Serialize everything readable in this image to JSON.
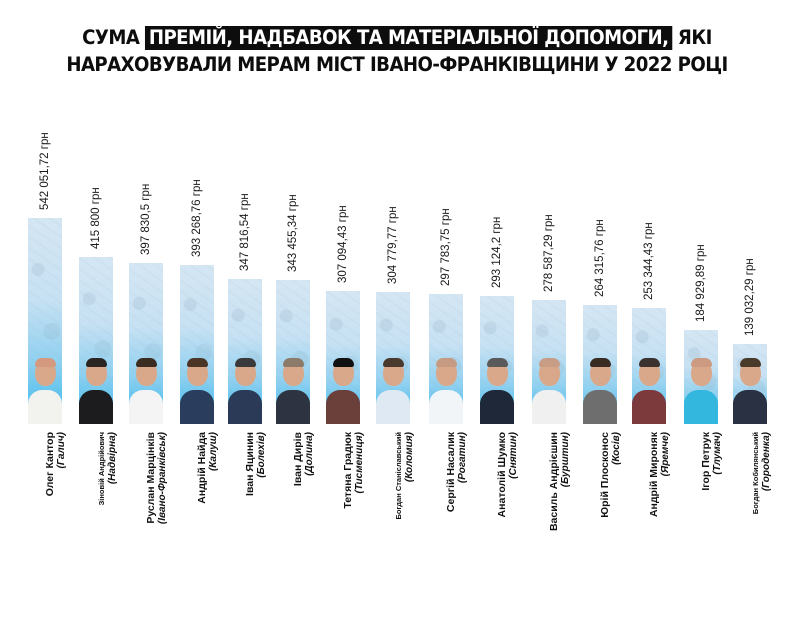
{
  "title": {
    "line1_prefix": "СУМА",
    "line1_highlight": "ПРЕМІЙ, НАДБАВОК ТА МАТЕРІАЛЬНОЇ ДОПОМОГИ,",
    "line1_suffix": "ЯКІ",
    "line2": "НАРАХОВУВАЛИ МЕРАМ МІСТ ІВАНО-ФРАНКІВЩИНИ У 2022 РОЦІ",
    "highlight_bg": "#0d0d0d",
    "highlight_fg": "#ffffff"
  },
  "colors": {
    "bar_top": "#d5e6f3",
    "bar_bottom": "#4bbdee",
    "text": "#111111"
  },
  "bars": [
    {
      "name": "Олег Кантор",
      "city": "(Галич)",
      "value_label": "542 051,72 грн"
    },
    {
      "name": "Зіновій Андрійович",
      "city": "(Надвірна)",
      "value_label": "415 800 грн"
    },
    {
      "name": "Руслан Марцінків",
      "city": "(Івано-Франківськ)",
      "value_label": "397 830,5 грн"
    },
    {
      "name": "Андрій Найда",
      "city": "(Калуш)",
      "value_label": "393 268,76 грн"
    },
    {
      "name": "Іван Яцинин",
      "city": "(Болехів)",
      "value_label": "347 816,54 грн"
    },
    {
      "name": "Іван Дирів",
      "city": "(Долина)",
      "value_label": "343 455,34 грн"
    },
    {
      "name": "Тетяна Градюк",
      "city": "(Тисмениця)",
      "value_label": "307 094,43 грн"
    },
    {
      "name": "Богдан Станіславський",
      "city": "(Коломия)",
      "value_label": "304 779,77 грн"
    },
    {
      "name": "Сергій Насалик",
      "city": "(Рогатин)",
      "value_label": "297 783,75 грн"
    },
    {
      "name": "Анатолій Шумко",
      "city": "(Снятин)",
      "value_label": "293 124,2 грн"
    },
    {
      "name": "Василь Андрієшин",
      "city": "(Бурштин)",
      "value_label": "278 587,29 грн"
    },
    {
      "name": "Юрій Плосконос",
      "city": "(Косів)",
      "value_label": "264 315,76 грн"
    },
    {
      "name": "Андрій Мироняк",
      "city": "(Яремче)",
      "value_label": "253 344,43 грн"
    },
    {
      "name": "Ігор Петрук",
      "city": "(Тлумач)",
      "value_label": "184 929,89 грн"
    },
    {
      "name": "Богдан Кобилянський",
      "city": "(Городенка)",
      "value_label": "139 032,29 грн"
    }
  ],
  "chart_data": {
    "type": "bar",
    "title": "Сума премій, надбавок та матеріальної допомоги, які нараховували мерам міст Івано-Франківщини у 2022 році",
    "xlabel": "",
    "ylabel": "",
    "unit": "грн",
    "categories": [
      "Олег Кантор (Галич)",
      "Зіновій Андрійович (Надвірна)",
      "Руслан Марцінків (Івано-Франківськ)",
      "Андрій Найда (Калуш)",
      "Іван Яцинин (Болехів)",
      "Іван Дирів (Долина)",
      "Тетяна Градюк (Тисмениця)",
      "Богдан Станіславський (Коломия)",
      "Сергій Насалик (Рогатин)",
      "Анатолій Шумко (Снятин)",
      "Василь Андрієшин (Бурштин)",
      "Юрій Плосконос (Косів)",
      "Андрій Мироняк (Яремче)",
      "Ігор Петрук (Тлумач)",
      "Богдан Кобилянський (Городенка)"
    ],
    "values": [
      542051.72,
      415800,
      397830.5,
      393268.76,
      347816.54,
      343455.34,
      307094.43,
      304779.77,
      297783.75,
      293124.2,
      278587.29,
      264315.76,
      253344.43,
      184929.89,
      139032.29
    ],
    "data_labels": [
      "542 051,72 грн",
      "415 800 грн",
      "397 830,5 грн",
      "393 268,76 грн",
      "347 816,54 грн",
      "343 455,34 грн",
      "307 094,43 грн",
      "304 779,77 грн",
      "297 783,75 грн",
      "293 124,2 грн",
      "278 587,29 грн",
      "264 315,76 грн",
      "253 344,43 грн",
      "184 929,89 грн",
      "139 032,29 грн"
    ],
    "grid": false,
    "legend": "none",
    "orientation": "vertical"
  }
}
